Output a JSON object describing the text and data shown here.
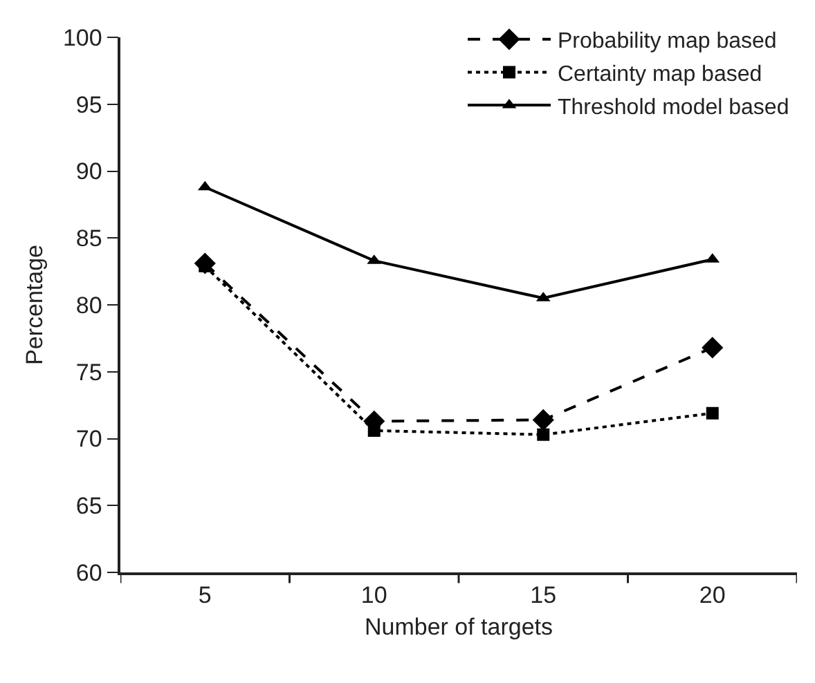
{
  "chart_data": {
    "type": "line",
    "xlabel": "Number of targets",
    "ylabel": "Percentage",
    "categories": [
      "5",
      "10",
      "15",
      "20"
    ],
    "ylim": [
      60,
      100
    ],
    "yticks": [
      60,
      65,
      70,
      75,
      80,
      85,
      90,
      95,
      100
    ],
    "grid": false,
    "legend": "top right",
    "series": [
      {
        "name": "Probability map based",
        "color": "#000000",
        "marker": "diamond",
        "line_style": "dashed",
        "values": [
          83.1,
          71.3,
          71.4,
          76.8
        ]
      },
      {
        "name": "Certainty map based",
        "color": "#000000",
        "marker": "square",
        "line_style": "dotted",
        "values": [
          82.9,
          70.6,
          70.3,
          71.9
        ]
      },
      {
        "name": "Threshold model based",
        "color": "#000000",
        "marker": "triangle",
        "line_style": "solid",
        "values": [
          88.8,
          83.3,
          80.5,
          83.4
        ]
      }
    ]
  }
}
